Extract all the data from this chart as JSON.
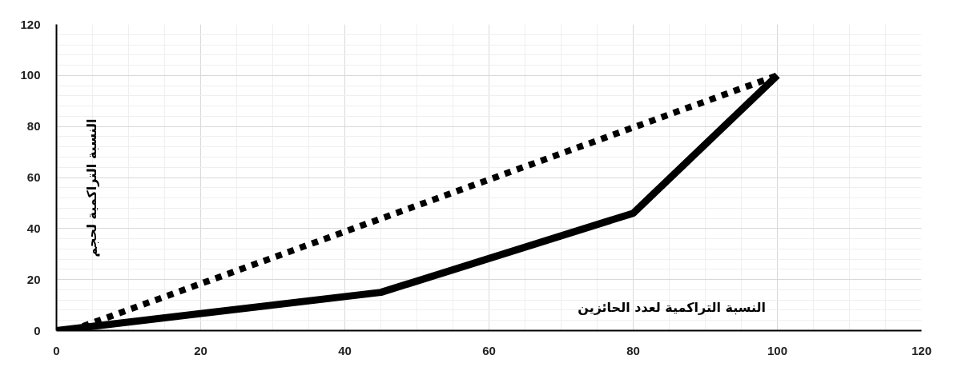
{
  "chart_data": {
    "type": "line",
    "xlabel": "النسبة التراكمية لعدد الحائزين",
    "ylabel": "النسبة التراكمية لحجم",
    "series": [
      {
        "x": [
          0,
          45,
          80,
          100
        ],
        "values": [
          0,
          15,
          46,
          100
        ],
        "color": "#000000",
        "line_style": "solid"
      },
      {
        "x": [
          2,
          100
        ],
        "values": [
          0,
          100
        ],
        "color": "#000000",
        "line_style": "dotted"
      }
    ],
    "xlim": [
      0,
      120
    ],
    "ylim": [
      0,
      120
    ],
    "xticks": [
      0,
      20,
      40,
      60,
      80,
      100,
      120
    ],
    "yticks": [
      0,
      20,
      40,
      60,
      80,
      100,
      120
    ],
    "grid": true
  }
}
